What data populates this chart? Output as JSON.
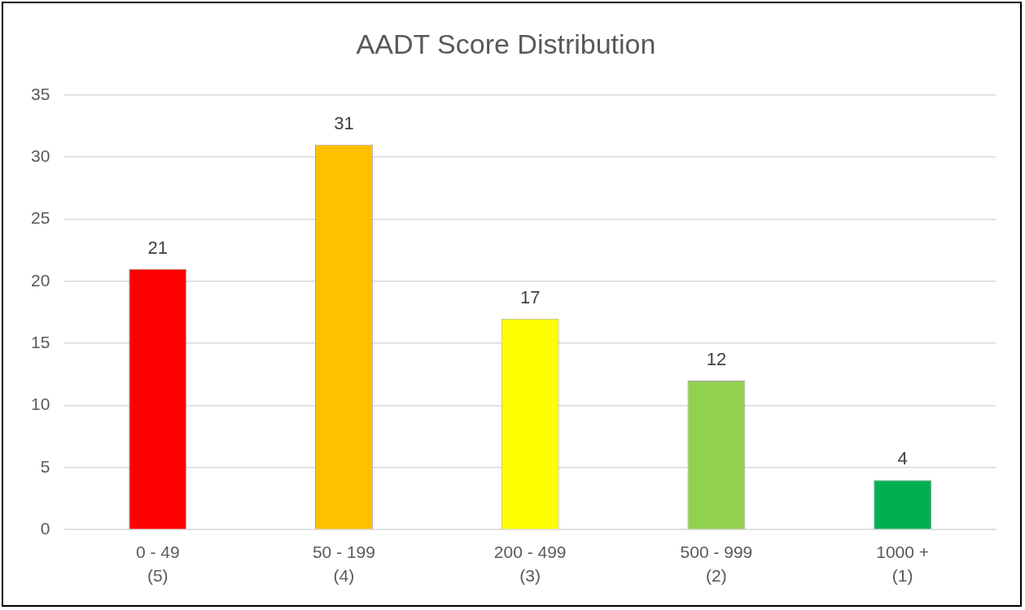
{
  "chart_data": {
    "type": "bar",
    "title": "AADT Score Distribution",
    "categories": [
      "0 - 49\n(5)",
      "50 - 199\n(4)",
      "200 - 499\n(3)",
      "500 - 999\n(2)",
      "1000 +\n(1)"
    ],
    "values": [
      21,
      31,
      17,
      12,
      4
    ],
    "colors": [
      "#ff0000",
      "#ffc000",
      "#ffff00",
      "#92d050",
      "#00b050"
    ],
    "ylim": [
      0,
      35
    ],
    "yticks": [
      0,
      5,
      10,
      15,
      20,
      25,
      30,
      35
    ],
    "grid": "y",
    "data_labels": true,
    "legend": false
  }
}
